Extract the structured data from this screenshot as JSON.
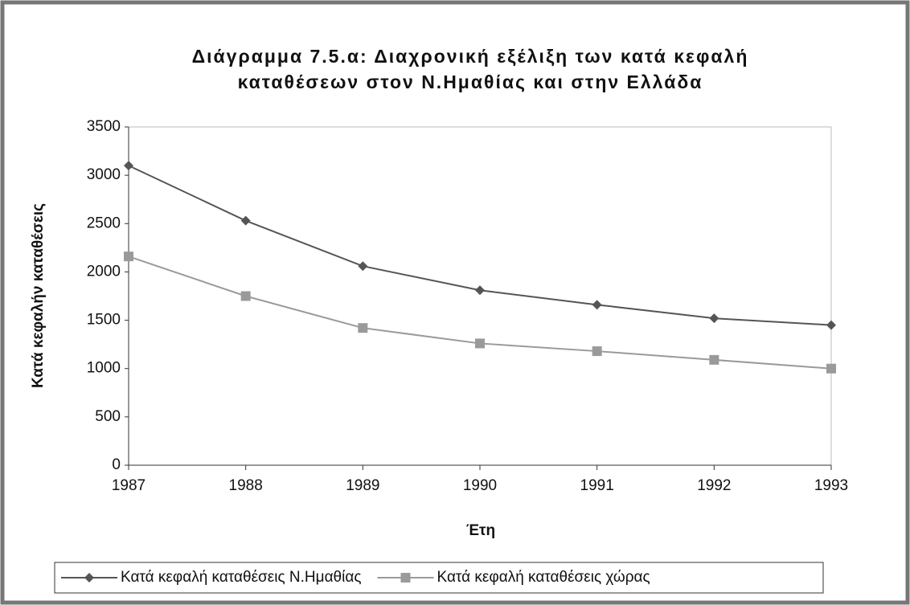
{
  "chart_data": {
    "type": "line",
    "title": [
      "Διάγραμμα 7.5.α: Διαχρονική εξέλιξη των κατά κεφαλή",
      "καταθέσεων στον Ν.Ημαθίας και στην Ελλάδα"
    ],
    "x_label": "Έτη",
    "y_label": "Κατά κεφαλήν καταθέσεις",
    "categories": [
      "1987",
      "1988",
      "1989",
      "1990",
      "1991",
      "1992",
      "1993"
    ],
    "series": [
      {
        "name": "Κατά κεφαλή καταθέσεις Ν.Ημαθίας",
        "color": "#555555",
        "marker": "diamond",
        "values": [
          3100,
          2530,
          2060,
          1810,
          1660,
          1520,
          1450
        ]
      },
      {
        "name": "Κατά κεφαλή καταθέσεις χώρας",
        "color": "#9a9a9a",
        "marker": "square",
        "values": [
          2160,
          1750,
          1420,
          1260,
          1180,
          1090,
          1000
        ]
      }
    ],
    "ylim": [
      0,
      3500
    ],
    "yticks": [
      0,
      500,
      1000,
      1500,
      2000,
      2500,
      3000,
      3500
    ],
    "grid": false,
    "legend": "bottom"
  }
}
